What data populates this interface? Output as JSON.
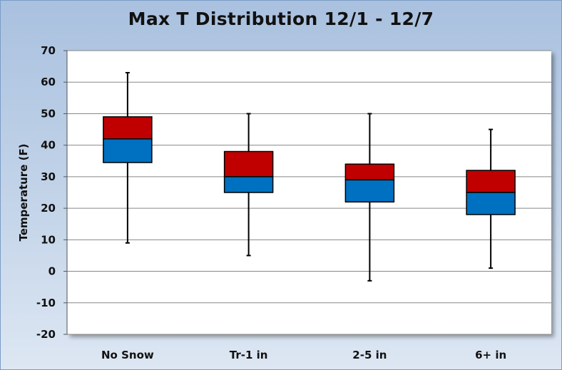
{
  "chart_data": {
    "type": "boxplot",
    "title": "Max T Distribution  12/1 - 12/7",
    "ylabel": "Temperature (F)",
    "xlabel": "",
    "ylim": [
      -20,
      70
    ],
    "yticks": [
      "70",
      "60",
      "50",
      "40",
      "30",
      "20",
      "10",
      "0",
      "-10",
      "-20"
    ],
    "grid": true,
    "categories": [
      "No Snow",
      "Tr-1 in",
      "2-5 in",
      "6+ in"
    ],
    "boxes": [
      {
        "min": 9,
        "q1": 34.5,
        "median": 42,
        "q3": 49,
        "max": 63
      },
      {
        "min": 5,
        "q1": 25,
        "median": 30,
        "q3": 38,
        "max": 50
      },
      {
        "min": -3,
        "q1": 22,
        "median": 29,
        "q3": 34,
        "max": 50
      },
      {
        "min": 1,
        "q1": 18,
        "median": 25,
        "q3": 32,
        "max": 45
      }
    ],
    "colors": {
      "upper_box": "#c00000",
      "lower_box": "#0070c0",
      "whisker": "#000000",
      "grid": "#888888"
    }
  }
}
